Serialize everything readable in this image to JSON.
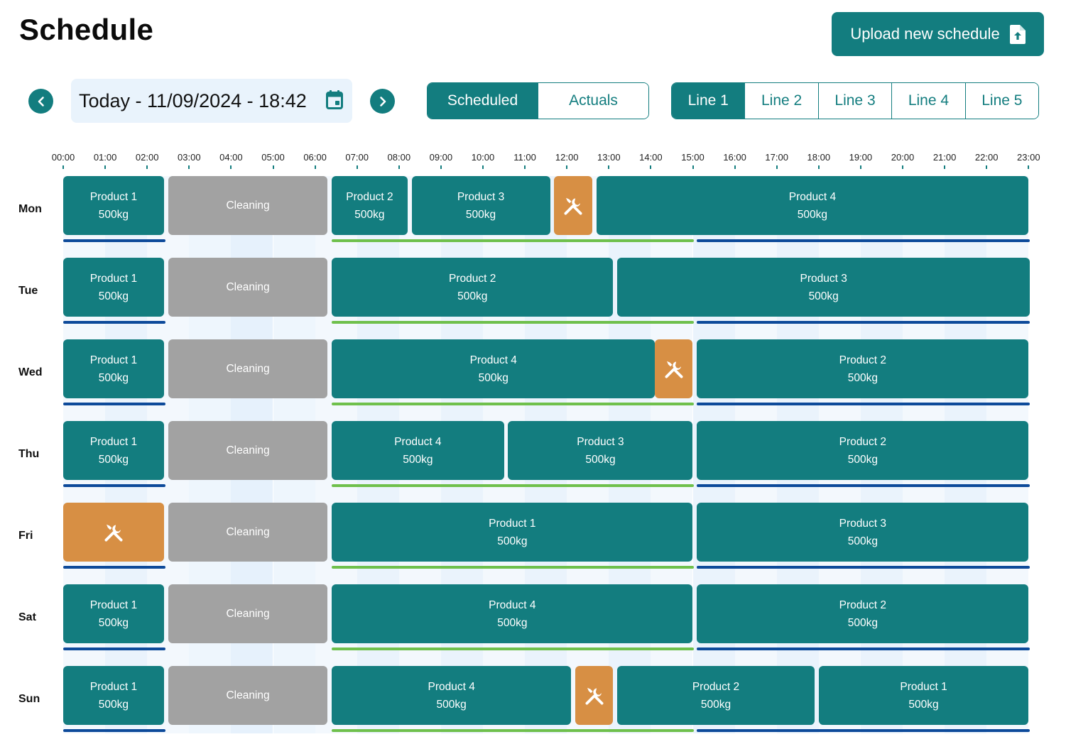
{
  "header": {
    "title": "Schedule",
    "upload_label": "Upload new schedule"
  },
  "date_nav": {
    "current": "Today - 11/09/2024 - 18:42"
  },
  "view_toggle": {
    "options": [
      "Scheduled",
      "Actuals"
    ],
    "selected": "Scheduled"
  },
  "lines": {
    "options": [
      "Line 1",
      "Line 2",
      "Line 3",
      "Line 4",
      "Line 5"
    ],
    "selected": "Line 1"
  },
  "time_axis": [
    "00:00",
    "01:00",
    "02:00",
    "03:00",
    "04:00",
    "05:00",
    "06:00",
    "07:00",
    "08:00",
    "09:00",
    "10:00",
    "11:00",
    "12:00",
    "13:00",
    "14:00",
    "15:00",
    "16:00",
    "17:00",
    "18:00",
    "19:00",
    "20:00",
    "21:00",
    "22:00",
    "23:00"
  ],
  "colors": {
    "accent": "#137d7f",
    "cleaning": "#a2a2a2",
    "maintenance": "#d78f44",
    "shift_blue": "#0d4a9a",
    "shift_green": "#6fc04c",
    "date_bg": "#e9f3fc"
  },
  "shifts": [
    {
      "color": "blue",
      "start": "00:00",
      "end": "02:24"
    },
    {
      "color": "green",
      "start": "06:24",
      "end": "15:00"
    },
    {
      "color": "blue",
      "start": "15:06",
      "end": "23:00"
    }
  ],
  "days": [
    {
      "label": "Mon",
      "blocks": [
        {
          "type": "product",
          "name": "Product 1",
          "qty": "500kg",
          "start": "00:00",
          "end": "02:24"
        },
        {
          "type": "cleaning",
          "name": "Cleaning",
          "start": "02:30",
          "end": "06:18"
        },
        {
          "type": "product",
          "name": "Product 2",
          "qty": "500kg",
          "start": "06:24",
          "end": "08:12"
        },
        {
          "type": "product",
          "name": "Product 3",
          "qty": "500kg",
          "start": "08:18",
          "end": "11:36"
        },
        {
          "type": "maintenance",
          "icon": "tools-icon",
          "start": "11:42",
          "end": "12:36"
        },
        {
          "type": "product",
          "name": "Product 4",
          "qty": "500kg",
          "start": "12:42",
          "end": "23:00"
        }
      ]
    },
    {
      "label": "Tue",
      "blocks": [
        {
          "type": "product",
          "name": "Product 1",
          "qty": "500kg",
          "start": "00:00",
          "end": "02:24"
        },
        {
          "type": "cleaning",
          "name": "Cleaning",
          "start": "02:30",
          "end": "06:18"
        },
        {
          "type": "product",
          "name": "Product 2",
          "qty": "500kg",
          "start": "06:24",
          "end": "13:06"
        },
        {
          "type": "product",
          "name": "Product 3",
          "qty": "500kg",
          "start": "13:12",
          "end": "23:02"
        }
      ]
    },
    {
      "label": "Wed",
      "blocks": [
        {
          "type": "product",
          "name": "Product 1",
          "qty": "500kg",
          "start": "00:00",
          "end": "02:24"
        },
        {
          "type": "cleaning",
          "name": "Cleaning",
          "start": "02:30",
          "end": "06:18"
        },
        {
          "type": "product",
          "name": "Product 4",
          "qty": "500kg",
          "start": "06:24",
          "end": "14:06"
        },
        {
          "type": "maintenance",
          "icon": "tools-icon",
          "start": "14:06",
          "end": "15:00"
        },
        {
          "type": "product",
          "name": "Product 2",
          "qty": "500kg",
          "start": "15:06",
          "end": "23:00"
        }
      ]
    },
    {
      "label": "Thu",
      "blocks": [
        {
          "type": "product",
          "name": "Product 1",
          "qty": "500kg",
          "start": "00:00",
          "end": "02:24"
        },
        {
          "type": "cleaning",
          "name": "Cleaning",
          "start": "02:30",
          "end": "06:18"
        },
        {
          "type": "product",
          "name": "Product 4",
          "qty": "500kg",
          "start": "06:24",
          "end": "10:30"
        },
        {
          "type": "product",
          "name": "Product 3",
          "qty": "500kg",
          "start": "10:36",
          "end": "15:00"
        },
        {
          "type": "product",
          "name": "Product 2",
          "qty": "500kg",
          "start": "15:06",
          "end": "23:00"
        }
      ]
    },
    {
      "label": "Fri",
      "blocks": [
        {
          "type": "maintenance",
          "icon": "tools-icon",
          "start": "00:00",
          "end": "02:24"
        },
        {
          "type": "cleaning",
          "name": "Cleaning",
          "start": "02:30",
          "end": "06:18"
        },
        {
          "type": "product",
          "name": "Product 1",
          "qty": "500kg",
          "start": "06:24",
          "end": "15:00"
        },
        {
          "type": "product",
          "name": "Product 3",
          "qty": "500kg",
          "start": "15:06",
          "end": "23:00"
        }
      ]
    },
    {
      "label": "Sat",
      "blocks": [
        {
          "type": "product",
          "name": "Product 1",
          "qty": "500kg",
          "start": "00:00",
          "end": "02:24"
        },
        {
          "type": "cleaning",
          "name": "Cleaning",
          "start": "02:30",
          "end": "06:18"
        },
        {
          "type": "product",
          "name": "Product 4",
          "qty": "500kg",
          "start": "06:24",
          "end": "15:00"
        },
        {
          "type": "product",
          "name": "Product 2",
          "qty": "500kg",
          "start": "15:06",
          "end": "23:00"
        }
      ]
    },
    {
      "label": "Sun",
      "blocks": [
        {
          "type": "product",
          "name": "Product 1",
          "qty": "500kg",
          "start": "00:00",
          "end": "02:24"
        },
        {
          "type": "cleaning",
          "name": "Cleaning",
          "start": "02:30",
          "end": "06:18"
        },
        {
          "type": "product",
          "name": "Product 4",
          "qty": "500kg",
          "start": "06:24",
          "end": "12:06"
        },
        {
          "type": "maintenance",
          "icon": "tools-icon",
          "start": "12:12",
          "end": "13:06"
        },
        {
          "type": "product",
          "name": "Product 2",
          "qty": "500kg",
          "start": "13:12",
          "end": "17:54"
        },
        {
          "type": "product",
          "name": "Product 1",
          "qty": "500kg",
          "start": "18:00",
          "end": "23:00"
        }
      ]
    }
  ]
}
